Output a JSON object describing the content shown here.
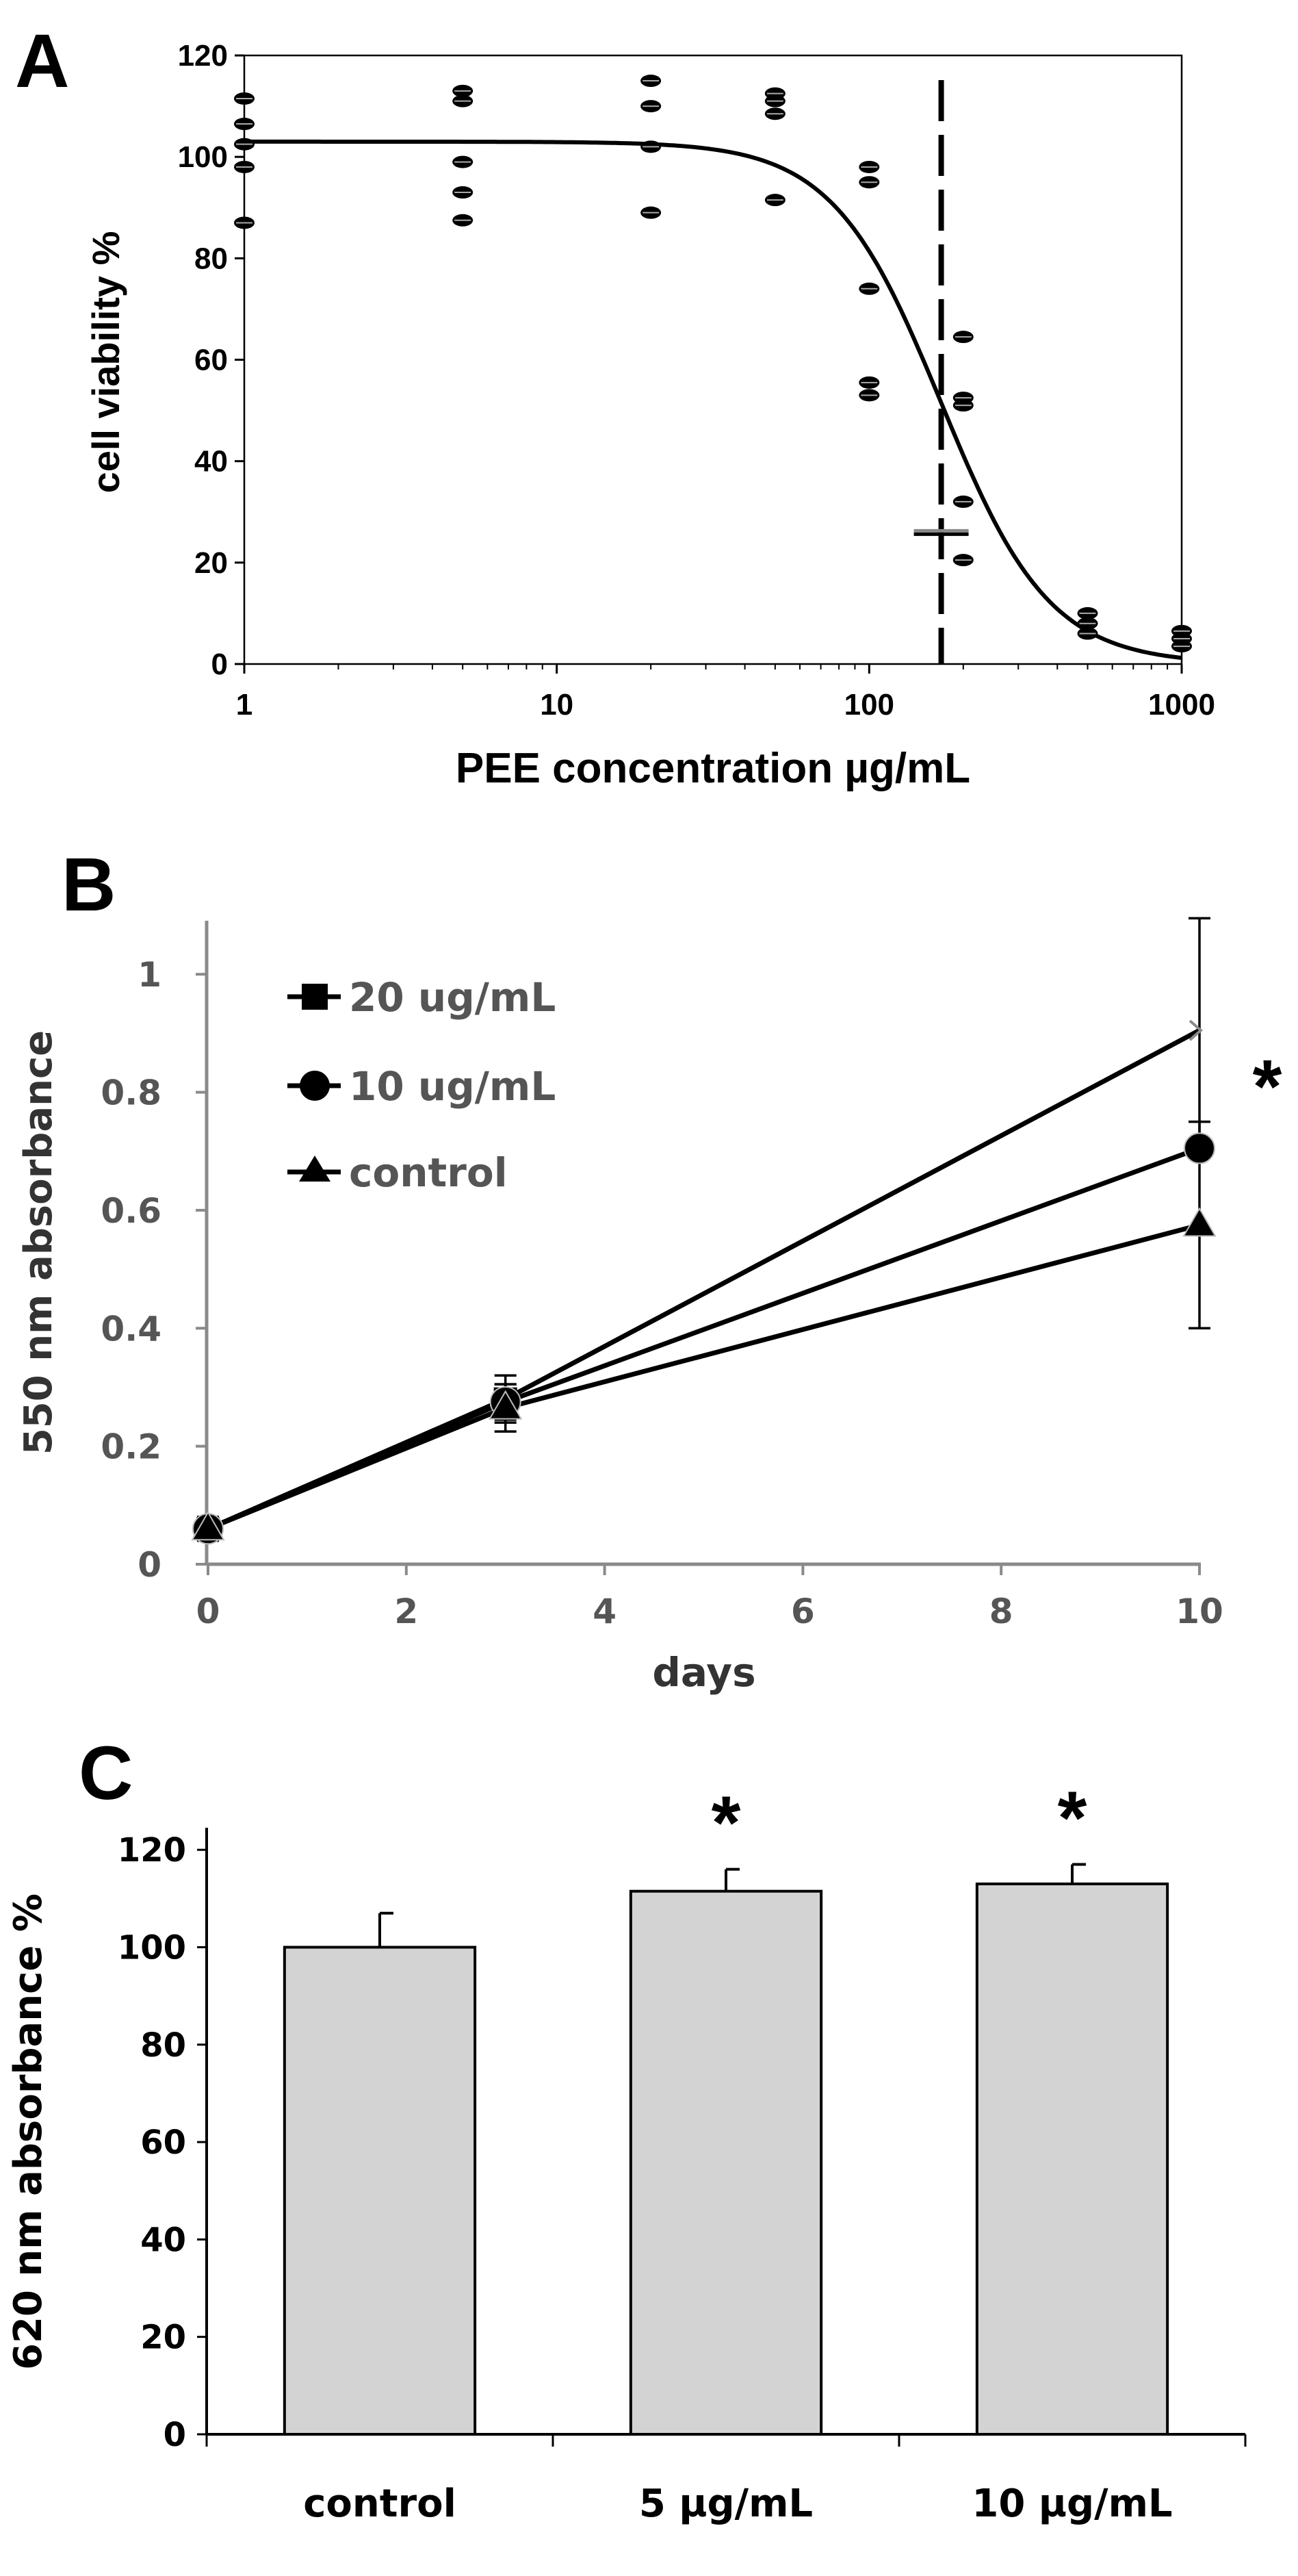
{
  "figure": {
    "background": "#ffffff",
    "ink": "#000000",
    "bar_fill": "#d3d3d3"
  },
  "chart_data": [
    {
      "panel": "A",
      "type": "scatter",
      "xscale": "log",
      "xlabel": "PEE concentration  µg/mL",
      "ylabel": "cell viability %",
      "xlim": [
        1,
        1000
      ],
      "ylim": [
        0,
        120
      ],
      "xticks": [
        1,
        10,
        100,
        1000
      ],
      "xtick_labels": [
        "1",
        "10",
        "100",
        "1000"
      ],
      "yticks": [
        0,
        20,
        40,
        60,
        80,
        100,
        120
      ],
      "ytick_labels": [
        "0",
        "20",
        "40",
        "60",
        "80",
        "100",
        "120"
      ],
      "points": [
        {
          "x": 1,
          "y": 111.5
        },
        {
          "x": 1,
          "y": 106.5
        },
        {
          "x": 1,
          "y": 102.5
        },
        {
          "x": 1,
          "y": 98
        },
        {
          "x": 1,
          "y": 87
        },
        {
          "x": 5,
          "y": 113
        },
        {
          "x": 5,
          "y": 111
        },
        {
          "x": 5,
          "y": 99
        },
        {
          "x": 5,
          "y": 93
        },
        {
          "x": 5,
          "y": 87.5
        },
        {
          "x": 20,
          "y": 115
        },
        {
          "x": 20,
          "y": 110
        },
        {
          "x": 20,
          "y": 102
        },
        {
          "x": 20,
          "y": 89
        },
        {
          "x": 50,
          "y": 112.5
        },
        {
          "x": 50,
          "y": 111
        },
        {
          "x": 50,
          "y": 108.5
        },
        {
          "x": 50,
          "y": 91.5
        },
        {
          "x": 100,
          "y": 98
        },
        {
          "x": 100,
          "y": 95
        },
        {
          "x": 100,
          "y": 74
        },
        {
          "x": 100,
          "y": 55.5
        },
        {
          "x": 100,
          "y": 53
        },
        {
          "x": 200,
          "y": 64.5
        },
        {
          "x": 200,
          "y": 52.5
        },
        {
          "x": 200,
          "y": 51
        },
        {
          "x": 200,
          "y": 32
        },
        {
          "x": 200,
          "y": 20.5
        },
        {
          "x": 500,
          "y": 10
        },
        {
          "x": 500,
          "y": 8
        },
        {
          "x": 500,
          "y": 6
        },
        {
          "x": 1000,
          "y": 6.5
        },
        {
          "x": 1000,
          "y": 5
        },
        {
          "x": 1000,
          "y": 3.5
        }
      ],
      "fit": {
        "model": "four-parameter logistic",
        "top": 103,
        "bottom": 0,
        "ic50": 170,
        "hill": 2.5
      },
      "ic50_marker": {
        "x": 170,
        "style": "dashed vertical line"
      },
      "error_caps": [
        {
          "x": 170,
          "y": 26
        }
      ]
    },
    {
      "panel": "B",
      "type": "line",
      "xlabel": "days",
      "ylabel": "550 nm absorbance",
      "xlim": [
        0,
        10
      ],
      "ylim": [
        0,
        1.1
      ],
      "xticks": [
        0,
        2,
        4,
        6,
        8,
        10
      ],
      "xtick_labels": [
        "0",
        "2",
        "4",
        "6",
        "8",
        "10"
      ],
      "yticks": [
        0,
        0.2,
        0.4,
        0.6,
        0.8,
        1
      ],
      "ytick_labels": [
        "0",
        "0.2",
        "0.4",
        "0.6",
        "0.8",
        "1"
      ],
      "x": [
        0,
        3,
        10
      ],
      "series": [
        {
          "name": "20 ug/mL",
          "marker": "square",
          "values": [
            0.06,
            0.28,
            0.905
          ],
          "errors": [
            0.02,
            0.04,
            0.19
          ]
        },
        {
          "name": "10 ug/mL",
          "marker": "circle",
          "values": [
            0.06,
            0.275,
            0.705
          ],
          "errors": [
            0.02,
            0.03,
            0.0
          ]
        },
        {
          "name": "control",
          "marker": "triangle",
          "values": [
            0.06,
            0.265,
            0.575
          ],
          "errors": [
            0.02,
            0.04,
            0.175
          ]
        }
      ],
      "legend_position": "top-left",
      "annotation": "*"
    },
    {
      "panel": "C",
      "type": "bar",
      "xlabel": "",
      "ylabel": "620 nm absorbance %",
      "categories": [
        "control",
        "5 µg/mL",
        "10 µg/mL"
      ],
      "values": [
        100,
        111.5,
        113
      ],
      "errors": [
        7,
        4.5,
        4
      ],
      "significance": [
        "",
        "*",
        "*"
      ],
      "ylim": [
        0,
        130
      ],
      "yticks": [
        0,
        20,
        40,
        60,
        80,
        100,
        120
      ],
      "ytick_labels": [
        "0",
        "20",
        "40",
        "60",
        "80",
        "100",
        "120"
      ]
    }
  ]
}
